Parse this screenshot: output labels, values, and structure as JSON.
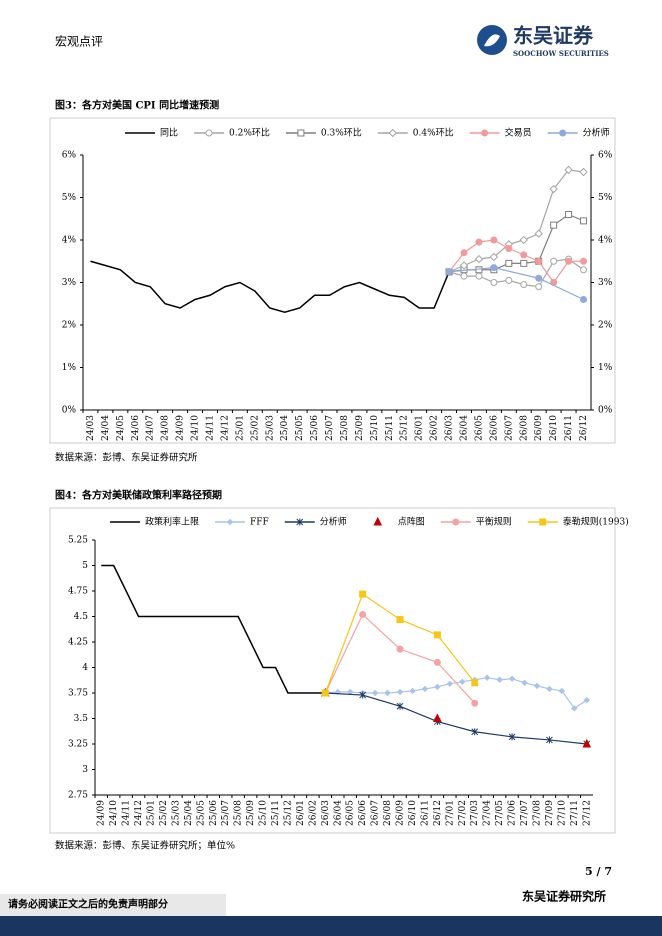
{
  "header": {
    "section": "宏观点评",
    "brand": "东吴证券",
    "brand_en": "SOOCHOW SECURITIES"
  },
  "figures": [
    {
      "title": "图3：各方对美国 CPI 同比增速预测",
      "source": "数据来源：彭博、东吴证券研究所"
    },
    {
      "title": "图4：各方对美联储政策利率路径预期",
      "source": "数据来源：彭博、东吴证券研究所；单位%"
    }
  ],
  "footer": {
    "page": "5 / 7",
    "org": "东吴证券研究所",
    "disclaimer": "请务必阅读正文之后的免责声明部分"
  },
  "chart_data": [
    {
      "type": "line",
      "categories": [
        "24/03",
        "24/04",
        "24/05",
        "24/06",
        "24/07",
        "24/08",
        "24/09",
        "24/10",
        "24/11",
        "24/12",
        "25/01",
        "25/02",
        "25/03",
        "25/04",
        "25/05",
        "25/06",
        "25/07",
        "25/08",
        "25/09",
        "25/10",
        "25/11",
        "25/12",
        "26/01",
        "26/02",
        "26/03",
        "26/04",
        "26/05",
        "26/06",
        "26/07",
        "26/08",
        "26/09",
        "26/10",
        "26/11",
        "26/12"
      ],
      "ylim": [
        0,
        6
      ],
      "yticks": [
        {
          "value": 0,
          "label": "0%"
        },
        {
          "value": 1,
          "label": "1%"
        },
        {
          "value": 2,
          "label": "2%"
        },
        {
          "value": 3,
          "label": "3%"
        },
        {
          "value": 4,
          "label": "4%"
        },
        {
          "value": 5,
          "label": "5%"
        },
        {
          "value": 6,
          "label": "6%"
        }
      ],
      "y2lim": [
        0,
        6
      ],
      "y2ticks": [
        {
          "value": 0,
          "label": "0%"
        },
        {
          "value": 1,
          "label": "1%"
        },
        {
          "value": 2,
          "label": "2%"
        },
        {
          "value": 3,
          "label": "3%"
        },
        {
          "value": 4,
          "label": "4%"
        },
        {
          "value": 5,
          "label": "5%"
        },
        {
          "value": 6,
          "label": "6%"
        }
      ],
      "series": [
        {
          "name": "同比",
          "color": "#000000",
          "marker": "none",
          "values": [
            3.5,
            3.4,
            3.3,
            3.0,
            2.9,
            2.5,
            2.4,
            2.6,
            2.7,
            2.9,
            3.0,
            2.8,
            2.4,
            2.3,
            2.4,
            2.7,
            2.7,
            2.9,
            3.0,
            2.85,
            2.7,
            2.65,
            2.4,
            2.4,
            3.25,
            null,
            null,
            null,
            null,
            null,
            null,
            null,
            null,
            null
          ]
        },
        {
          "name": "0.2%环比",
          "color": "#a6a6a6",
          "marker": "circle",
          "hollow": true,
          "x": [
            "26/03",
            "26/04",
            "26/05",
            "26/06",
            "26/07",
            "26/08",
            "26/09",
            "26/10",
            "26/11",
            "26/12"
          ],
          "values": [
            3.25,
            3.15,
            3.15,
            3.0,
            3.05,
            2.95,
            2.9,
            3.5,
            3.55,
            3.3
          ]
        },
        {
          "name": "0.3%环比",
          "color": "#7f7f7f",
          "marker": "square",
          "hollow": true,
          "x": [
            "26/03",
            "26/04",
            "26/05",
            "26/06",
            "26/07",
            "26/08",
            "26/09",
            "26/10",
            "26/11",
            "26/12"
          ],
          "values": [
            3.25,
            3.3,
            3.3,
            3.3,
            3.45,
            3.45,
            3.5,
            4.35,
            4.6,
            4.45
          ]
        },
        {
          "name": "0.4%环比",
          "color": "#a6a6a6",
          "marker": "diamond",
          "hollow": true,
          "x": [
            "26/03",
            "26/04",
            "26/05",
            "26/06",
            "26/07",
            "26/08",
            "26/09",
            "26/10",
            "26/11",
            "26/12"
          ],
          "values": [
            3.25,
            3.4,
            3.55,
            3.6,
            3.9,
            4.0,
            4.15,
            5.2,
            5.65,
            5.6
          ]
        },
        {
          "name": "交易员",
          "color": "#f29a9a",
          "marker": "circle",
          "x": [
            "26/03",
            "26/04",
            "26/05",
            "26/06",
            "26/07",
            "26/08",
            "26/09",
            "26/10",
            "26/11",
            "26/12"
          ],
          "values": [
            3.25,
            3.7,
            3.95,
            4.0,
            3.8,
            3.65,
            3.5,
            3.0,
            3.5,
            3.5
          ]
        },
        {
          "name": "分析师",
          "color": "#8eaadb",
          "marker": "circle",
          "x": [
            "26/03",
            "26/06",
            "26/09",
            "26/12"
          ],
          "values": [
            3.25,
            3.35,
            3.1,
            2.6
          ]
        }
      ]
    },
    {
      "type": "line",
      "categories": [
        "24/09",
        "24/10",
        "24/11",
        "24/12",
        "25/01",
        "25/02",
        "25/03",
        "25/04",
        "25/05",
        "25/06",
        "25/07",
        "25/08",
        "25/09",
        "25/10",
        "25/11",
        "25/12",
        "26/01",
        "26/02",
        "26/03",
        "26/04",
        "26/05",
        "26/06",
        "26/07",
        "26/08",
        "26/09",
        "26/10",
        "26/11",
        "26/12",
        "27/01",
        "27/02",
        "27/03",
        "27/04",
        "27/05",
        "27/06",
        "27/07",
        "27/08",
        "27/09",
        "27/10",
        "27/11",
        "27/12"
      ],
      "ylim": [
        2.75,
        5.25
      ],
      "yticks": [
        2.75,
        3,
        3.25,
        3.5,
        3.75,
        4,
        4.25,
        4.5,
        4.75,
        5,
        5.25
      ],
      "series": [
        {
          "name": "政策利率上限",
          "color": "#000000",
          "marker": "none",
          "values": [
            5,
            5,
            4.75,
            4.5,
            4.5,
            4.5,
            4.5,
            4.5,
            4.5,
            4.5,
            4.5,
            4.5,
            4.25,
            4.0,
            4.0,
            3.75,
            3.75,
            3.75,
            3.75,
            null,
            null,
            null,
            null,
            null,
            null,
            null,
            null,
            null,
            null,
            null,
            null,
            null,
            null,
            null,
            null,
            null,
            null,
            null,
            null,
            null
          ]
        },
        {
          "name": "FFF",
          "color": "#a9c4eb",
          "marker": "diamond",
          "small": true,
          "x": [
            "26/03",
            "26/04",
            "26/05",
            "26/06",
            "26/07",
            "26/08",
            "26/09",
            "26/10",
            "26/11",
            "26/12",
            "27/01",
            "27/02",
            "27/03",
            "27/04",
            "27/05",
            "27/06",
            "27/07",
            "27/08",
            "27/09",
            "27/10",
            "27/11",
            "27/12"
          ],
          "values": [
            3.75,
            3.76,
            3.76,
            3.75,
            3.75,
            3.75,
            3.76,
            3.77,
            3.79,
            3.81,
            3.84,
            3.86,
            3.88,
            3.9,
            3.88,
            3.89,
            3.85,
            3.82,
            3.79,
            3.77,
            3.6,
            3.68
          ]
        },
        {
          "name": "分析师",
          "color": "#1f3864",
          "marker": "star",
          "x": [
            "26/03",
            "26/06",
            "26/09",
            "26/12",
            "27/03",
            "27/06",
            "27/09",
            "27/12"
          ],
          "values": [
            3.75,
            3.73,
            3.62,
            3.47,
            3.37,
            3.32,
            3.29,
            3.25
          ]
        },
        {
          "name": "点阵图",
          "color": "#c00000",
          "marker": "triangle",
          "line": false,
          "x": [
            "26/03",
            "26/12",
            "27/12"
          ],
          "values": [
            3.75,
            3.5,
            3.25
          ]
        },
        {
          "name": "平衡规则",
          "color": "#f4a3a3",
          "marker": "circle",
          "x": [
            "26/03",
            "26/06",
            "26/09",
            "26/12",
            "27/03"
          ],
          "values": [
            3.75,
            4.52,
            4.18,
            4.05,
            3.65
          ]
        },
        {
          "name": "泰勒规则(1993)",
          "color": "#f5c518",
          "marker": "square",
          "x": [
            "26/03",
            "26/06",
            "26/09",
            "26/12",
            "27/03"
          ],
          "values": [
            3.75,
            4.72,
            4.47,
            4.32,
            3.85
          ]
        }
      ]
    }
  ]
}
